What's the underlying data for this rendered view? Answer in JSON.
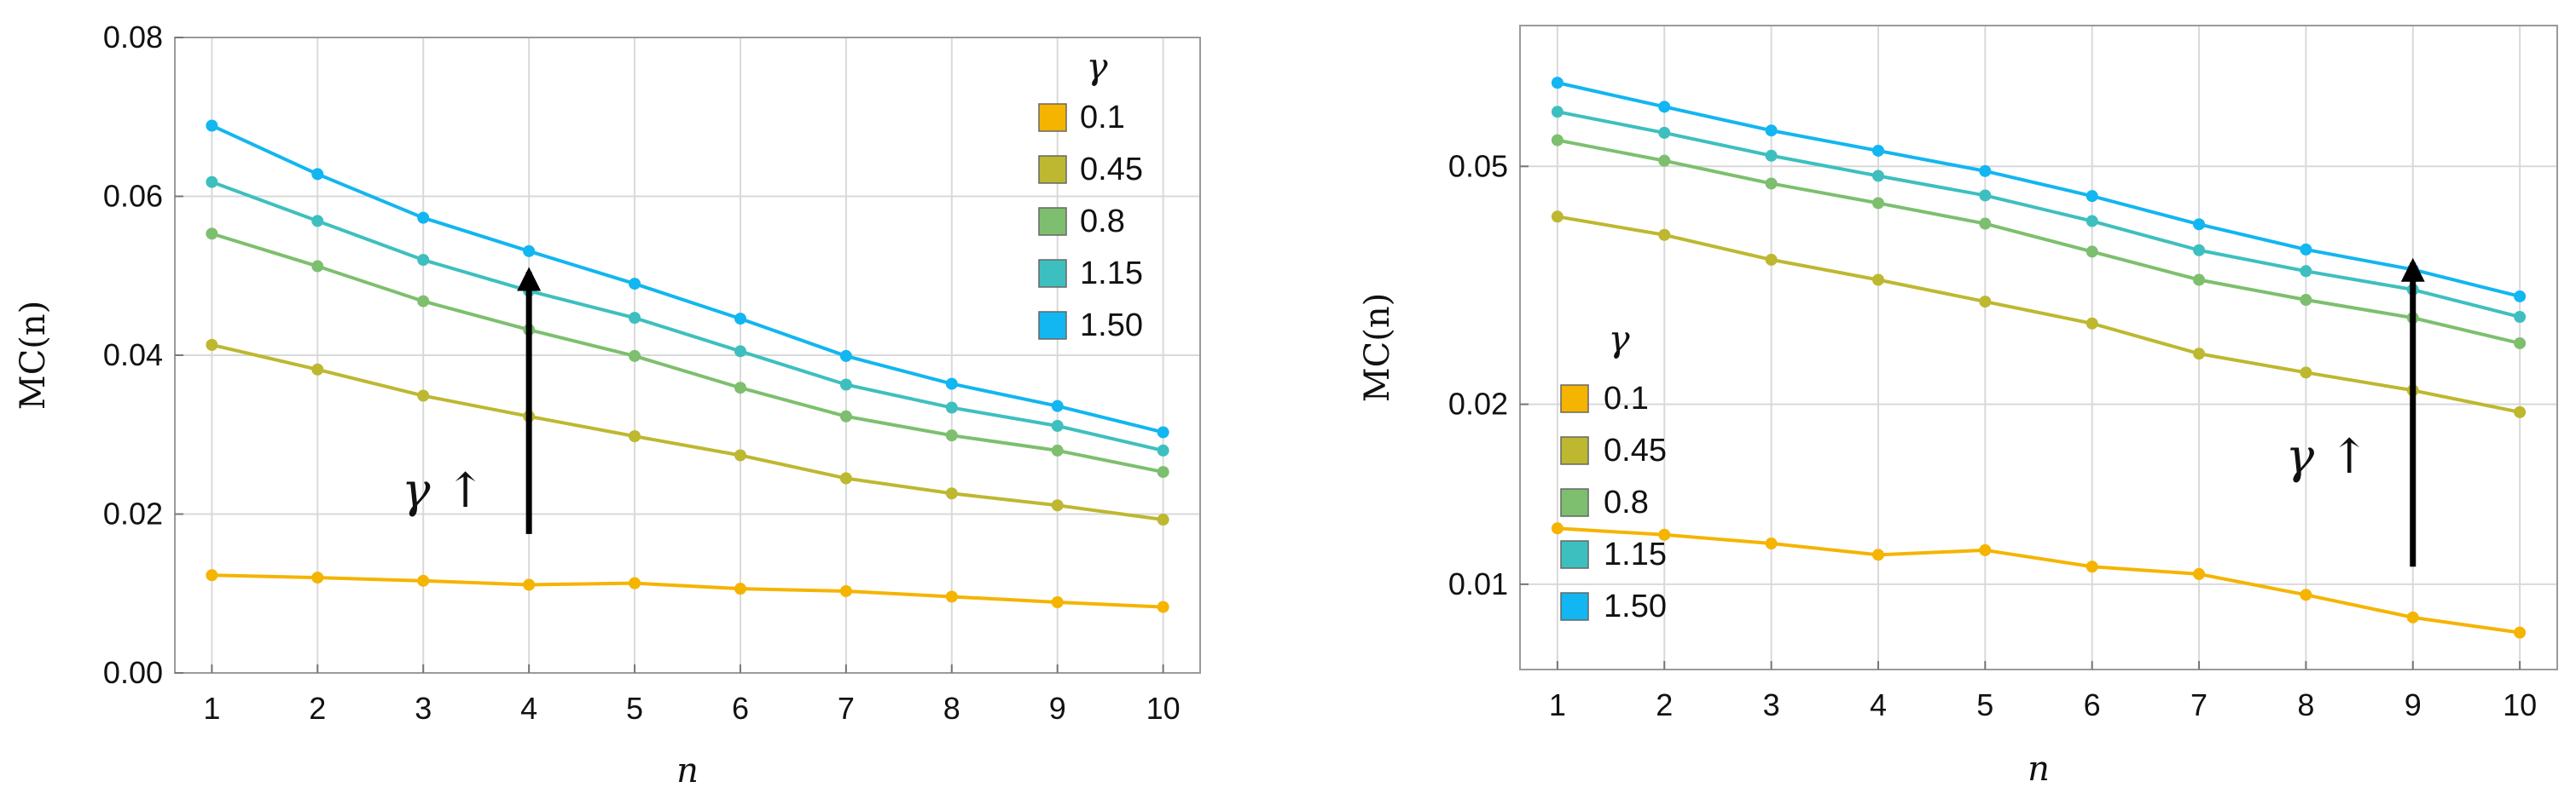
{
  "figure_title": "",
  "chart_data": [
    {
      "type": "line",
      "scale": "linear",
      "xlabel": "n",
      "ylabel": "MC(n)",
      "x": [
        1,
        2,
        3,
        4,
        5,
        6,
        7,
        8,
        9,
        10
      ],
      "xticks": [
        "1",
        "2",
        "3",
        "4",
        "5",
        "6",
        "7",
        "8",
        "9",
        "10"
      ],
      "ylim": [
        0,
        0.08
      ],
      "yticks": [
        0.0,
        0.02,
        0.04,
        0.06,
        0.08
      ],
      "ytick_labels": [
        "0.00",
        "0.02",
        "0.04",
        "0.06",
        "0.08"
      ],
      "grid": true,
      "legend_title": "γ",
      "legend_position": "top-right",
      "annotation": "γ ↑",
      "arrow": {
        "x": 4,
        "from": 0.0175,
        "to": 0.0505
      },
      "series": [
        {
          "name": "0.1",
          "color": "#F5B400",
          "values": [
            0.0123,
            0.012,
            0.0116,
            0.0111,
            0.0113,
            0.0106,
            0.0103,
            0.0096,
            0.0089,
            0.0083
          ]
        },
        {
          "name": "0.45",
          "color": "#BDB830",
          "values": [
            0.0413,
            0.0382,
            0.0349,
            0.0323,
            0.0298,
            0.0274,
            0.0245,
            0.0226,
            0.0211,
            0.0193
          ]
        },
        {
          "name": "0.8",
          "color": "#7DBF6E",
          "values": [
            0.0553,
            0.0512,
            0.0468,
            0.0432,
            0.0399,
            0.0359,
            0.0323,
            0.0299,
            0.028,
            0.0253
          ]
        },
        {
          "name": "1.15",
          "color": "#3EBFBF",
          "values": [
            0.0618,
            0.0569,
            0.052,
            0.0481,
            0.0447,
            0.0405,
            0.0363,
            0.0334,
            0.0311,
            0.028
          ]
        },
        {
          "name": "1.50",
          "color": "#12B6F0",
          "values": [
            0.0689,
            0.0628,
            0.0573,
            0.0531,
            0.049,
            0.0446,
            0.0399,
            0.0364,
            0.0336,
            0.0303
          ]
        }
      ]
    },
    {
      "type": "line",
      "scale": "log",
      "xlabel": "n",
      "ylabel": "MC(n)",
      "x": [
        1,
        2,
        3,
        4,
        5,
        6,
        7,
        8,
        9,
        10
      ],
      "xticks": [
        "1",
        "2",
        "3",
        "4",
        "5",
        "6",
        "7",
        "8",
        "9",
        "10"
      ],
      "ylim": [
        0.0072,
        0.086
      ],
      "yticks": [
        0.01,
        0.02,
        0.05
      ],
      "ytick_labels": [
        "0.01",
        "0.02",
        "0.05"
      ],
      "grid": true,
      "legend_title": "γ",
      "legend_position": "center-left",
      "annotation": "γ ↑",
      "arrow": {
        "x": 9,
        "from": 0.0107,
        "to": 0.0345
      },
      "series": [
        {
          "name": "0.1",
          "color": "#F5B400",
          "values": [
            0.0124,
            0.0121,
            0.0117,
            0.0112,
            0.0114,
            0.0107,
            0.0104,
            0.0096,
            0.0088,
            0.0083
          ]
        },
        {
          "name": "0.45",
          "color": "#BDB830",
          "values": [
            0.0412,
            0.0384,
            0.0349,
            0.0323,
            0.0297,
            0.0273,
            0.0243,
            0.0226,
            0.0211,
            0.0194
          ]
        },
        {
          "name": "0.8",
          "color": "#7DBF6E",
          "values": [
            0.0553,
            0.0511,
            0.0468,
            0.0434,
            0.0401,
            0.036,
            0.0323,
            0.0299,
            0.0279,
            0.0253
          ]
        },
        {
          "name": "1.15",
          "color": "#3EBFBF",
          "values": [
            0.0617,
            0.0569,
            0.0521,
            0.0482,
            0.0447,
            0.0405,
            0.0362,
            0.0334,
            0.0311,
            0.028
          ]
        },
        {
          "name": "1.50",
          "color": "#12B6F0",
          "values": [
            0.069,
            0.0629,
            0.0574,
            0.0531,
            0.0491,
            0.0446,
            0.04,
            0.0363,
            0.0336,
            0.0303
          ]
        }
      ]
    }
  ]
}
